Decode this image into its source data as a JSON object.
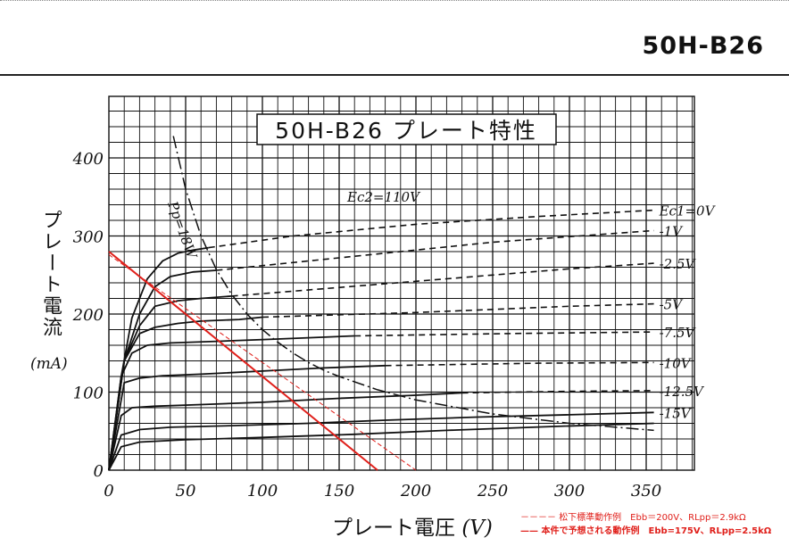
{
  "header": {
    "title": "50H-B26"
  },
  "chart_data": {
    "type": "line",
    "title": "50H-B26 プレート特性",
    "xlabel": "プレート電圧",
    "xunit": "(V)",
    "ylabel": "プレート電流",
    "yunit": "(mA)",
    "xlim": [
      0,
      385
    ],
    "ylim": [
      0,
      480
    ],
    "xticks": [
      0,
      50,
      100,
      150,
      200,
      250,
      300,
      350
    ],
    "yticks": [
      0,
      100,
      200,
      300,
      400
    ],
    "grid": true,
    "condition_label": "Ec2=110V",
    "dissipation_label": "Pp=18W",
    "series": [
      {
        "name": "Ec1=0V",
        "solid": [
          [
            0,
            0
          ],
          [
            8,
            120
          ],
          [
            15,
            195
          ],
          [
            25,
            245
          ],
          [
            35,
            268
          ],
          [
            45,
            278
          ],
          [
            55,
            282
          ],
          [
            65,
            285
          ]
        ],
        "dashed": [
          [
            65,
            285
          ],
          [
            120,
            300
          ],
          [
            200,
            315
          ],
          [
            280,
            325
          ],
          [
            355,
            333
          ]
        ]
      },
      {
        "name": "-1V",
        "solid": [
          [
            0,
            0
          ],
          [
            10,
            140
          ],
          [
            20,
            200
          ],
          [
            30,
            235
          ],
          [
            40,
            248
          ],
          [
            55,
            254
          ],
          [
            70,
            256
          ]
        ],
        "dashed": [
          [
            70,
            256
          ],
          [
            150,
            272
          ],
          [
            250,
            292
          ],
          [
            355,
            307
          ]
        ]
      },
      {
        "name": "-2.5V",
        "solid": [
          [
            0,
            0
          ],
          [
            10,
            140
          ],
          [
            20,
            185
          ],
          [
            30,
            210
          ],
          [
            45,
            217
          ],
          [
            60,
            220
          ],
          [
            80,
            223
          ]
        ],
        "dashed": [
          [
            80,
            223
          ],
          [
            200,
            242
          ],
          [
            300,
            258
          ],
          [
            355,
            265
          ]
        ]
      },
      {
        "name": "-5V",
        "solid": [
          [
            0,
            0
          ],
          [
            10,
            140
          ],
          [
            20,
            175
          ],
          [
            30,
            183
          ],
          [
            45,
            188
          ],
          [
            60,
            191
          ],
          [
            85,
            193
          ],
          [
            100,
            196
          ]
        ],
        "dashed": [
          [
            100,
            196
          ],
          [
            200,
            202
          ],
          [
            300,
            210
          ],
          [
            355,
            213
          ]
        ]
      },
      {
        "name": "-7.5V",
        "solid": [
          [
            0,
            0
          ],
          [
            8,
            120
          ],
          [
            15,
            150
          ],
          [
            25,
            160
          ],
          [
            40,
            163
          ],
          [
            70,
            165
          ],
          [
            110,
            168
          ],
          [
            160,
            172
          ]
        ],
        "dashed": [
          [
            160,
            172
          ],
          [
            260,
            175
          ],
          [
            355,
            177
          ]
        ]
      },
      {
        "name": "-10V",
        "solid": [
          [
            0,
            0
          ],
          [
            10,
            112
          ],
          [
            20,
            118
          ],
          [
            35,
            121
          ],
          [
            60,
            123
          ],
          [
            100,
            127
          ],
          [
            140,
            131
          ],
          [
            180,
            134
          ]
        ],
        "dashed": [
          [
            180,
            134
          ],
          [
            280,
            137
          ],
          [
            355,
            138
          ]
        ]
      },
      {
        "name": "-12.5V",
        "solid": [
          [
            0,
            0
          ],
          [
            8,
            70
          ],
          [
            15,
            80
          ],
          [
            30,
            82
          ],
          [
            60,
            84
          ],
          [
            100,
            87
          ],
          [
            150,
            92
          ],
          [
            200,
            96
          ],
          [
            230,
            99
          ]
        ],
        "dashed": [
          [
            230,
            99
          ],
          [
            300,
            101
          ],
          [
            355,
            102
          ]
        ]
      },
      {
        "name": "-15V",
        "solid": [
          [
            0,
            0
          ],
          [
            8,
            45
          ],
          [
            20,
            52
          ],
          [
            40,
            55
          ],
          [
            80,
            57
          ],
          [
            130,
            60
          ],
          [
            180,
            64
          ],
          [
            240,
            68
          ],
          [
            300,
            71
          ],
          [
            355,
            74
          ]
        ],
        "dashed": []
      },
      {
        "name": "",
        "solid": [
          [
            0,
            0
          ],
          [
            8,
            30
          ],
          [
            20,
            36
          ],
          [
            50,
            39
          ],
          [
            100,
            42
          ],
          [
            160,
            46
          ],
          [
            220,
            51
          ],
          [
            290,
            56
          ],
          [
            355,
            60
          ]
        ],
        "dashed": []
      }
    ],
    "pp_curve": [
      [
        42,
        428
      ],
      [
        50,
        360
      ],
      [
        60,
        300
      ],
      [
        70,
        257
      ],
      [
        80,
        225
      ],
      [
        90,
        200
      ],
      [
        100,
        180
      ],
      [
        110,
        164
      ],
      [
        120,
        150
      ],
      [
        130,
        138
      ],
      [
        140,
        128
      ],
      [
        150,
        120
      ],
      [
        175,
        103
      ],
      [
        200,
        90
      ],
      [
        250,
        72
      ],
      [
        300,
        60
      ],
      [
        355,
        51
      ]
    ],
    "load_lines": [
      {
        "name": "松下標準動作例 Ebb=200V、RLpp=2.9kΩ",
        "style": "dashed",
        "color": "#e0201b",
        "points": [
          [
            0,
            276
          ],
          [
            200,
            0
          ]
        ]
      },
      {
        "name": "本件で予想される動作例 Ebb=175V、RLpp=2.5kΩ",
        "style": "solid",
        "color": "#e0201b",
        "points": [
          [
            0,
            280
          ],
          [
            175,
            0
          ]
        ]
      }
    ],
    "legend_placement": "bottom-right"
  },
  "notes": {
    "line1_prefix": "－－－－",
    "line1": "松下標準動作例　Ebb＝200V、RLpp＝2.9kΩ",
    "line2_prefix": "——",
    "line2": "本件で予想される動作例　Ebb=175V、RLpp=2.5kΩ"
  }
}
